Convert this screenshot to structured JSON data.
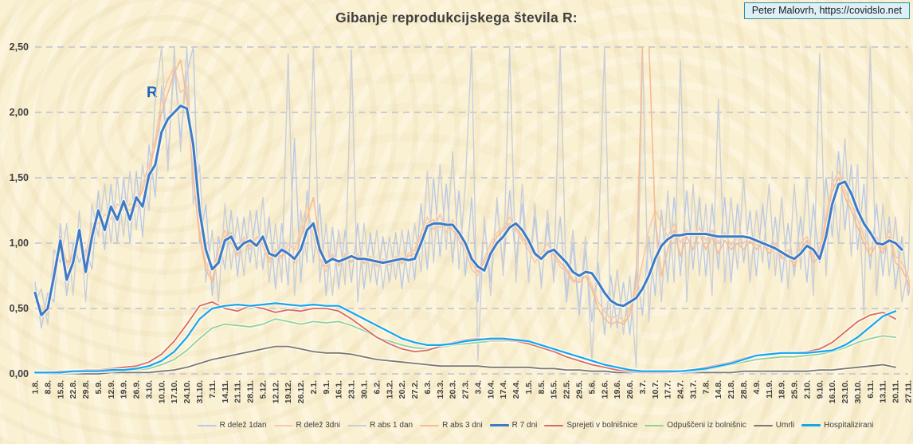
{
  "title": "Gibanje reprodukcijskega števila R:",
  "attribution": "Peter Malovrh, https://covidslo.net",
  "annotation_r": "R",
  "colors": {
    "background": "#faf1d3",
    "title_text": "#3f3f3f",
    "gridline": "#c7c9cf",
    "attribution_bg": "#ddf0f6",
    "attribution_border": "#2e8fa6",
    "annotation_r": "#1b63b7"
  },
  "chart_data": {
    "type": "line",
    "title": "Gibanje reprodukcijskega števila R:",
    "xlabel": "",
    "ylabel": "",
    "ylim": [
      0,
      2.5
    ],
    "grid": "horizontal-dashed",
    "legend_position": "bottom",
    "y_ticks": [
      0,
      0.5,
      1.0,
      1.5,
      2.0,
      2.5
    ],
    "y_tick_labels": [
      "0,00",
      "0,50",
      "1,00",
      "1,50",
      "2,00",
      "2,50"
    ],
    "x_tick_labels": [
      "1.8.",
      "8.8.",
      "15.8.",
      "22.8.",
      "29.8.",
      "5.9.",
      "12.9.",
      "19.9.",
      "26.9.",
      "3.10.",
      "10.10.",
      "17.10.",
      "24.10.",
      "31.10.",
      "7.11.",
      "14.11.",
      "21.11.",
      "28.11.",
      "5.12.",
      "12.12.",
      "19.12.",
      "26.12.",
      "2.1.",
      "9.1.",
      "16.1.",
      "23.1.",
      "30.1.",
      "6.2.",
      "13.2.",
      "20.2.",
      "27.2.",
      "6.3.",
      "13.3.",
      "20.3.",
      "27.3.",
      "3.4.",
      "10.4.",
      "17.4.",
      "24.4.",
      "1.5.",
      "8.5.",
      "15.5.",
      "22.5.",
      "29.5.",
      "5.6.",
      "12.6.",
      "19.6.",
      "26.6.",
      "3.7.",
      "10.7.",
      "17.7.",
      "24.7.",
      "31.7.",
      "7.8.",
      "14.8.",
      "21.8.",
      "28.8.",
      "4.9.",
      "11.9.",
      "18.9.",
      "25.9.",
      "2.10.",
      "9.10.",
      "16.10.",
      "23.10.",
      "30.10.",
      "6.11.",
      "13.11.",
      "20.11.",
      "27.11."
    ],
    "x_axis_unit": "weeks",
    "x_week_count": 69,
    "draw_order": [
      "r_delez_1dan",
      "r_abs_1dan",
      "r_delez_3dni",
      "r_abs_3dni",
      "umrli",
      "odpusceni",
      "sprejeti",
      "hospitalizirani",
      "r_7dni"
    ],
    "series": [
      {
        "id": "r_delez_1dan",
        "label": "R delež 1dan",
        "color": "#b9c9e6",
        "width": 1.4,
        "halo": false,
        "step_weeks": 0.5,
        "start_week": 0,
        "values": [
          0.7,
          0.35,
          0.62,
          0.55,
          1.15,
          0.6,
          1.0,
          0.85,
          0.95,
          0.8,
          1.4,
          0.95,
          1.45,
          1.0,
          1.5,
          1.0,
          1.55,
          1.05,
          1.75,
          1.35,
          2.2,
          1.65,
          2.35,
          1.8,
          2.3,
          2.5,
          1.0,
          1.3,
          0.6,
          1.05,
          0.8,
          1.25,
          0.75,
          1.2,
          0.85,
          1.25,
          0.8,
          1.2,
          0.65,
          1.15,
          0.68,
          1.8,
          0.7,
          1.4,
          0.85,
          1.3,
          0.6,
          1.12,
          0.65,
          1.1,
          0.7,
          1.15,
          0.65,
          1.08,
          0.68,
          1.05,
          0.7,
          1.08,
          0.65,
          1.1,
          0.72,
          1.3,
          0.8,
          1.5,
          0.9,
          1.45,
          0.85,
          1.4,
          0.75,
          1.35,
          0.55,
          1.15,
          0.7,
          1.3,
          0.8,
          1.4,
          0.85,
          1.3,
          0.75,
          1.2,
          0.7,
          1.15,
          0.75,
          1.2,
          0.55,
          1.0,
          0.45,
          0.95,
          0.4,
          0.85,
          0.3,
          0.75,
          0.35,
          0.7,
          0.3,
          0.8,
          0.45,
          1.05,
          0.6,
          1.25,
          0.7,
          1.35,
          0.75,
          1.4,
          0.8,
          1.35,
          0.75,
          1.3,
          0.8,
          1.35,
          0.7,
          1.3,
          0.85,
          1.25,
          0.75,
          1.3,
          0.8,
          1.2,
          0.7,
          1.15,
          0.75,
          1.2,
          0.7,
          1.3,
          0.85,
          1.5,
          1.05,
          1.7,
          1.1,
          1.6,
          0.95,
          1.45,
          0.8,
          1.3,
          0.75,
          1.2,
          0.65,
          1.05,
          0.6,
          0.9
        ]
      },
      {
        "id": "r_delez_3dni",
        "label": "R delež 3dni",
        "color": "#f7c9a8",
        "width": 1.6,
        "halo": false,
        "step_weeks": 0.5,
        "start_week": 0,
        "values": [
          0.55,
          0.52,
          0.45,
          0.85,
          0.95,
          0.8,
          0.95,
          1.0,
          0.9,
          1.15,
          1.15,
          1.22,
          1.18,
          1.3,
          1.25,
          1.3,
          1.28,
          1.45,
          1.6,
          1.8,
          2.1,
          2.25,
          2.35,
          2.15,
          2.2,
          1.6,
          1.1,
          0.85,
          0.72,
          0.95,
          1.1,
          1.0,
          0.9,
          1.05,
          0.95,
          1.05,
          0.98,
          0.85,
          0.95,
          0.88,
          1.0,
          0.95,
          1.1,
          1.3,
          1.05,
          0.88,
          0.78,
          0.92,
          0.82,
          0.92,
          0.85,
          0.92,
          0.84,
          0.9,
          0.82,
          0.88,
          0.83,
          0.9,
          0.84,
          0.92,
          0.95,
          1.08,
          1.2,
          1.1,
          1.22,
          1.08,
          1.18,
          1.02,
          0.95,
          0.8,
          0.75,
          0.88,
          1.0,
          1.08,
          1.12,
          1.2,
          1.1,
          1.02,
          0.95,
          0.85,
          0.92,
          1.0,
          0.9,
          0.82,
          0.78,
          0.7,
          0.72,
          0.8,
          0.68,
          0.55,
          0.48,
          0.42,
          0.45,
          0.4,
          0.5,
          0.62,
          0.85,
          1.1,
          1.25,
          1.15,
          1.05,
          1.15,
          1.0,
          1.1,
          1.05,
          1.12,
          1.02,
          1.1,
          1.0,
          1.08,
          0.98,
          1.05,
          1.0,
          1.05,
          0.98,
          1.02,
          0.95,
          1.0,
          0.9,
          0.95,
          0.85,
          1.0,
          1.05,
          0.9,
          0.95,
          1.2,
          1.45,
          1.55,
          1.4,
          1.3,
          1.18,
          1.05,
          0.95,
          1.05,
          0.95,
          1.1,
          0.9,
          0.85,
          0.75,
          0.45
        ]
      },
      {
        "id": "r_abs_1dan",
        "label": "R abs 1 dan",
        "color": "#cbced6",
        "width": 1.4,
        "halo": false,
        "step_weeks": 0.5,
        "start_week": 0,
        "values": [
          0.55,
          0.65,
          0.38,
          0.95,
          0.85,
          1.15,
          0.6,
          1.25,
          0.55,
          1.3,
          1.05,
          1.45,
          1.0,
          1.5,
          1.05,
          1.55,
          1.1,
          1.6,
          1.25,
          2.1,
          2.5,
          1.55,
          2.5,
          1.7,
          2.5,
          1.3,
          1.6,
          0.7,
          1.1,
          0.55,
          1.3,
          0.8,
          1.2,
          0.75,
          1.25,
          0.8,
          1.35,
          0.7,
          1.15,
          0.7,
          2.45,
          0.6,
          1.25,
          0.85,
          2.5,
          0.7,
          1.15,
          0.6,
          1.1,
          0.68,
          2.48,
          0.55,
          1.15,
          0.7,
          1.1,
          0.65,
          1.05,
          0.72,
          1.1,
          0.7,
          1.15,
          0.78,
          1.55,
          0.85,
          1.6,
          0.95,
          1.7,
          0.8,
          1.45,
          2.5,
          0.1,
          1.2,
          0.6,
          1.35,
          0.75,
          2.5,
          0.7,
          1.45,
          0.7,
          1.3,
          0.65,
          1.25,
          0.7,
          2.5,
          0.6,
          1.1,
          0.5,
          1.05,
          0.1,
          0.95,
          2.5,
          0.35,
          0.8,
          0.3,
          0.75,
          0.05,
          2.5,
          0.4,
          1.2,
          0.55,
          1.4,
          0.7,
          2.4,
          0.55,
          1.45,
          0.75,
          1.3,
          0.6,
          2.1,
          0.7,
          1.35,
          0.8,
          1.5,
          0.7,
          1.25,
          0.85,
          1.45,
          0.75,
          1.35,
          0.65,
          1.45,
          0.8,
          1.5,
          0.6,
          2.45,
          0.75,
          1.55,
          1.0,
          1.8,
          0.9,
          1.6,
          0.45,
          2.5,
          0.6,
          1.3,
          0.75,
          1.2,
          0.55,
          0.8,
          2.45
        ]
      },
      {
        "id": "r_abs_3dni",
        "label": "R abs 3 dni",
        "color": "#f4bc95",
        "width": 1.6,
        "halo": false,
        "step_weeks": 0.5,
        "start_week": 0,
        "values": [
          0.6,
          0.48,
          0.52,
          0.7,
          1.05,
          0.85,
          0.9,
          1.05,
          0.85,
          1.1,
          1.2,
          1.15,
          1.25,
          1.22,
          1.28,
          1.25,
          1.32,
          1.4,
          1.55,
          1.75,
          2.0,
          2.15,
          2.3,
          2.4,
          2.1,
          1.5,
          1.05,
          0.8,
          0.7,
          0.9,
          1.05,
          1.08,
          0.92,
          1.02,
          0.98,
          1.0,
          1.02,
          0.88,
          0.92,
          0.9,
          0.95,
          0.85,
          1.05,
          1.2,
          1.35,
          1.0,
          0.82,
          0.9,
          0.84,
          0.9,
          0.86,
          0.9,
          0.85,
          0.88,
          0.84,
          0.86,
          0.84,
          0.88,
          0.85,
          0.9,
          0.92,
          1.05,
          1.15,
          1.18,
          1.12,
          1.16,
          1.1,
          1.05,
          0.98,
          0.85,
          0.78,
          0.85,
          0.95,
          1.05,
          1.1,
          1.15,
          1.12,
          1.05,
          0.98,
          0.9,
          0.88,
          0.95,
          0.92,
          0.85,
          0.8,
          0.72,
          0.7,
          0.75,
          0.65,
          0.5,
          0.42,
          0.38,
          0.4,
          0.38,
          0.45,
          0.7,
          2.5,
          2.55,
          1.2,
          0.75,
          0.95,
          1.1,
          0.9,
          1.05,
          0.95,
          1.08,
          0.95,
          1.05,
          0.92,
          1.02,
          0.95,
          1.0,
          0.95,
          1.02,
          0.95,
          1.0,
          0.92,
          0.98,
          0.88,
          0.92,
          0.82,
          0.95,
          1.02,
          0.85,
          0.9,
          1.15,
          1.4,
          1.5,
          1.35,
          1.25,
          1.12,
          1.0,
          0.9,
          1.0,
          0.92,
          1.05,
          0.85,
          0.8,
          0.7,
          0.42
        ]
      },
      {
        "id": "r_7dni",
        "label": "R 7 dni",
        "color": "#3d7bc6",
        "width": 3.0,
        "halo": true,
        "step_weeks": 0.5,
        "start_week": 0,
        "values": [
          0.62,
          0.45,
          0.5,
          0.75,
          1.02,
          0.72,
          0.85,
          1.1,
          0.78,
          1.05,
          1.25,
          1.1,
          1.28,
          1.18,
          1.32,
          1.18,
          1.35,
          1.28,
          1.52,
          1.6,
          1.85,
          1.95,
          2.0,
          2.05,
          2.03,
          1.75,
          1.25,
          0.95,
          0.8,
          0.85,
          1.02,
          1.05,
          0.95,
          1.0,
          1.02,
          0.98,
          1.05,
          0.92,
          0.9,
          0.95,
          0.92,
          0.88,
          0.95,
          1.1,
          1.15,
          0.95,
          0.85,
          0.88,
          0.86,
          0.88,
          0.9,
          0.88,
          0.88,
          0.87,
          0.86,
          0.85,
          0.86,
          0.87,
          0.88,
          0.87,
          0.88,
          1.0,
          1.13,
          1.15,
          1.15,
          1.14,
          1.14,
          1.08,
          1.0,
          0.88,
          0.82,
          0.79,
          0.92,
          1.0,
          1.05,
          1.12,
          1.15,
          1.1,
          1.02,
          0.92,
          0.88,
          0.93,
          0.95,
          0.9,
          0.85,
          0.78,
          0.75,
          0.78,
          0.77,
          0.7,
          0.62,
          0.56,
          0.53,
          0.52,
          0.55,
          0.58,
          0.65,
          0.75,
          0.88,
          0.98,
          1.03,
          1.06,
          1.06,
          1.07,
          1.07,
          1.07,
          1.07,
          1.06,
          1.05,
          1.05,
          1.05,
          1.05,
          1.05,
          1.04,
          1.02,
          1.0,
          0.98,
          0.96,
          0.93,
          0.9,
          0.88,
          0.92,
          0.98,
          0.95,
          0.88,
          1.05,
          1.3,
          1.45,
          1.47,
          1.38,
          1.25,
          1.15,
          1.08,
          1.0,
          0.99,
          1.02,
          1.0,
          0.95
        ]
      },
      {
        "id": "sprejeti",
        "label": "Sprejeti v bolnišnice",
        "color": "#d96b5f",
        "width": 1.8,
        "halo": true,
        "step_weeks": 1,
        "start_week": 0,
        "values": [
          0.01,
          0.01,
          0.02,
          0.02,
          0.03,
          0.03,
          0.04,
          0.05,
          0.06,
          0.09,
          0.15,
          0.25,
          0.38,
          0.52,
          0.55,
          0.5,
          0.48,
          0.52,
          0.5,
          0.47,
          0.49,
          0.48,
          0.5,
          0.5,
          0.48,
          0.42,
          0.35,
          0.28,
          0.23,
          0.19,
          0.17,
          0.18,
          0.21,
          0.24,
          0.26,
          0.27,
          0.26,
          0.26,
          0.25,
          0.23,
          0.2,
          0.17,
          0.13,
          0.1,
          0.07,
          0.05,
          0.03,
          0.02,
          0.01,
          0.01,
          0.01,
          0.02,
          0.03,
          0.05,
          0.07,
          0.09,
          0.12,
          0.14,
          0.15,
          0.16,
          0.16,
          0.17,
          0.19,
          0.24,
          0.32,
          0.4,
          0.45,
          0.47,
          0.42
        ]
      },
      {
        "id": "odpusceni",
        "label": "Odpuščeni iz bolnišnic",
        "color": "#95d197",
        "width": 1.8,
        "halo": true,
        "step_weeks": 1,
        "start_week": 0,
        "values": [
          0.0,
          0.01,
          0.01,
          0.01,
          0.02,
          0.02,
          0.02,
          0.03,
          0.03,
          0.04,
          0.07,
          0.11,
          0.18,
          0.27,
          0.35,
          0.38,
          0.37,
          0.36,
          0.38,
          0.42,
          0.4,
          0.38,
          0.4,
          0.39,
          0.4,
          0.37,
          0.33,
          0.28,
          0.25,
          0.22,
          0.2,
          0.19,
          0.2,
          0.22,
          0.23,
          0.24,
          0.25,
          0.25,
          0.25,
          0.24,
          0.22,
          0.19,
          0.16,
          0.13,
          0.1,
          0.07,
          0.05,
          0.03,
          0.02,
          0.02,
          0.01,
          0.02,
          0.02,
          0.03,
          0.05,
          0.07,
          0.09,
          0.11,
          0.12,
          0.13,
          0.13,
          0.14,
          0.15,
          0.17,
          0.2,
          0.24,
          0.27,
          0.29,
          0.28
        ]
      },
      {
        "id": "umrli",
        "label": "Umrli",
        "color": "#7e786c",
        "width": 1.8,
        "halo": true,
        "step_weeks": 1,
        "start_week": 0,
        "values": [
          0.0,
          0.0,
          0.0,
          0.0,
          0.0,
          0.0,
          0.01,
          0.01,
          0.01,
          0.01,
          0.02,
          0.03,
          0.05,
          0.08,
          0.11,
          0.13,
          0.15,
          0.17,
          0.19,
          0.21,
          0.21,
          0.19,
          0.17,
          0.16,
          0.16,
          0.15,
          0.13,
          0.11,
          0.1,
          0.09,
          0.08,
          0.07,
          0.06,
          0.06,
          0.06,
          0.06,
          0.05,
          0.05,
          0.05,
          0.05,
          0.04,
          0.04,
          0.03,
          0.03,
          0.02,
          0.02,
          0.01,
          0.01,
          0.01,
          0.01,
          0.01,
          0.01,
          0.01,
          0.01,
          0.01,
          0.01,
          0.02,
          0.02,
          0.02,
          0.02,
          0.02,
          0.02,
          0.03,
          0.03,
          0.04,
          0.05,
          0.06,
          0.07,
          0.05
        ]
      },
      {
        "id": "hospitalizirani",
        "label": "Hospitalizirani",
        "color": "#18a6e9",
        "width": 2.2,
        "halo": true,
        "step_weeks": 1,
        "start_week": 0,
        "values": [
          0.01,
          0.01,
          0.01,
          0.02,
          0.02,
          0.02,
          0.03,
          0.03,
          0.04,
          0.06,
          0.1,
          0.17,
          0.28,
          0.42,
          0.5,
          0.52,
          0.53,
          0.52,
          0.53,
          0.54,
          0.53,
          0.52,
          0.53,
          0.52,
          0.52,
          0.47,
          0.42,
          0.37,
          0.32,
          0.27,
          0.24,
          0.22,
          0.22,
          0.23,
          0.25,
          0.26,
          0.27,
          0.27,
          0.26,
          0.25,
          0.22,
          0.19,
          0.16,
          0.13,
          0.1,
          0.07,
          0.05,
          0.03,
          0.02,
          0.02,
          0.02,
          0.02,
          0.03,
          0.04,
          0.06,
          0.08,
          0.11,
          0.14,
          0.15,
          0.16,
          0.16,
          0.16,
          0.17,
          0.18,
          0.22,
          0.28,
          0.36,
          0.44,
          0.48
        ]
      }
    ]
  }
}
